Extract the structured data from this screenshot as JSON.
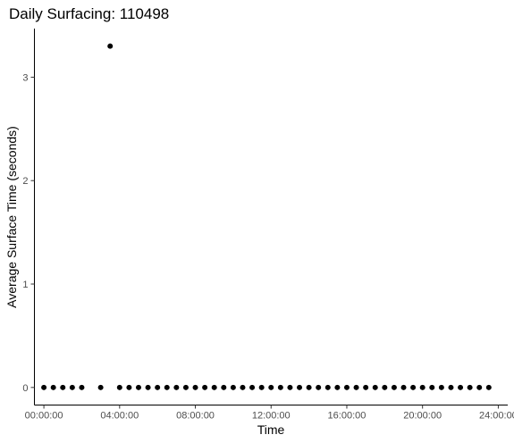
{
  "chart_data": {
    "type": "scatter",
    "title": "Daily Surfacing: 110498",
    "xlabel": "Time",
    "ylabel": "Average Surface Time (seconds)",
    "x_ticks": [
      "00:00:00",
      "04:00:00",
      "08:00:00",
      "12:00:00",
      "16:00:00",
      "20:00:00",
      "24:00:00"
    ],
    "y_ticks": [
      "0",
      "1",
      "2",
      "3"
    ],
    "xlim": [
      "-00:30:00",
      "24:30:00"
    ],
    "ylim": [
      -0.17,
      3.47
    ],
    "grid": false,
    "point_color": "#000000",
    "points": [
      {
        "x": "00:00:00",
        "y": 0
      },
      {
        "x": "00:30:00",
        "y": 0
      },
      {
        "x": "01:00:00",
        "y": 0
      },
      {
        "x": "01:30:00",
        "y": 0
      },
      {
        "x": "02:00:00",
        "y": 0
      },
      {
        "x": "03:00:00",
        "y": 0
      },
      {
        "x": "03:30:00",
        "y": 3.3
      },
      {
        "x": "04:00:00",
        "y": 0
      },
      {
        "x": "04:30:00",
        "y": 0
      },
      {
        "x": "05:00:00",
        "y": 0
      },
      {
        "x": "05:30:00",
        "y": 0
      },
      {
        "x": "06:00:00",
        "y": 0
      },
      {
        "x": "06:30:00",
        "y": 0
      },
      {
        "x": "07:00:00",
        "y": 0
      },
      {
        "x": "07:30:00",
        "y": 0
      },
      {
        "x": "08:00:00",
        "y": 0
      },
      {
        "x": "08:30:00",
        "y": 0
      },
      {
        "x": "09:00:00",
        "y": 0
      },
      {
        "x": "09:30:00",
        "y": 0
      },
      {
        "x": "10:00:00",
        "y": 0
      },
      {
        "x": "10:30:00",
        "y": 0
      },
      {
        "x": "11:00:00",
        "y": 0
      },
      {
        "x": "11:30:00",
        "y": 0
      },
      {
        "x": "12:00:00",
        "y": 0
      },
      {
        "x": "12:30:00",
        "y": 0
      },
      {
        "x": "13:00:00",
        "y": 0
      },
      {
        "x": "13:30:00",
        "y": 0
      },
      {
        "x": "14:00:00",
        "y": 0
      },
      {
        "x": "14:30:00",
        "y": 0
      },
      {
        "x": "15:00:00",
        "y": 0
      },
      {
        "x": "15:30:00",
        "y": 0
      },
      {
        "x": "16:00:00",
        "y": 0
      },
      {
        "x": "16:30:00",
        "y": 0
      },
      {
        "x": "17:00:00",
        "y": 0
      },
      {
        "x": "17:30:00",
        "y": 0
      },
      {
        "x": "18:00:00",
        "y": 0
      },
      {
        "x": "18:30:00",
        "y": 0
      },
      {
        "x": "19:00:00",
        "y": 0
      },
      {
        "x": "19:30:00",
        "y": 0
      },
      {
        "x": "20:00:00",
        "y": 0
      },
      {
        "x": "20:30:00",
        "y": 0
      },
      {
        "x": "21:00:00",
        "y": 0
      },
      {
        "x": "21:30:00",
        "y": 0
      },
      {
        "x": "22:00:00",
        "y": 0
      },
      {
        "x": "22:30:00",
        "y": 0
      },
      {
        "x": "23:00:00",
        "y": 0
      },
      {
        "x": "23:30:00",
        "y": 0
      }
    ]
  }
}
